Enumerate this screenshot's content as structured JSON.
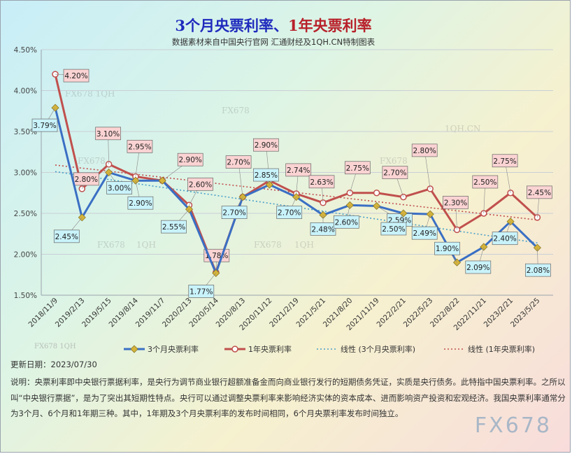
{
  "title_part1": "3个月央票利率、",
  "title_part2": "1年央票利率",
  "subtitle": "数据素材来自中国央行官网 汇通财经及1QH.CN特制图表",
  "update_text": "更新日期：2023/07/30",
  "note": "说明：央票利率即中央银行票据利率，是央行为调节商业银行超额准备金而向商业银行发行的短期债务凭证，实质是央行债务。此特指中国央票利率。之所以叫“中央银行票据”，是为了突出其短期性特点。央行可以通过调整央票利率来影响经济实体的资本成本、进而影响资产投资和宏观经济。我国央票利率通常分为3个月、6个月和1年期三种。其中，1年期及3个月央票利率的发布时间相同，6个月央票利率发布时间独立。",
  "watermarks": [
    "FX678 1QH",
    "FX678",
    "FX678",
    "1QH.CN",
    "FX678",
    "FX678",
    "1QH",
    "FX678",
    "1QH",
    "FX678 1QH"
  ],
  "watermark_big": "FX678",
  "colors": {
    "series_3m": "#3a6fc4",
    "series_1y": "#c0504d",
    "marker_3m": "#d6b43a",
    "label_3m_bg": "#c9f3fb",
    "label_1y_bg": "#fbd3d3"
  },
  "chart_data": {
    "type": "line",
    "categories": [
      "2018/11/9",
      "2019/2/13",
      "2019/5/15",
      "2019/8/14",
      "2019/11/7",
      "2020/2/13",
      "2020/5/14",
      "2020/8/13",
      "2020/11/12",
      "2021/2/19",
      "2021/5/21",
      "2021/8/20",
      "2021/11/19",
      "2022/2/21",
      "2022/5/23",
      "2022/8/22",
      "2022/11/21",
      "2023/2/21",
      "2023/5/25"
    ],
    "series": [
      {
        "name": "3个月央票利率",
        "values": [
          3.79,
          2.45,
          3.0,
          2.9,
          2.9,
          2.55,
          1.77,
          2.7,
          2.85,
          2.7,
          2.48,
          2.6,
          2.59,
          2.5,
          2.49,
          1.9,
          2.09,
          2.4,
          2.08
        ],
        "labels": [
          "3.79%",
          "2.45%",
          "3.00%",
          "2.90%",
          "",
          "2.55%",
          "1.77%",
          "2.70%",
          "2.85%",
          "2.70%",
          "2.48%",
          "2.60%",
          "2.59%",
          "2.50%",
          "2.49%",
          "1.90%",
          "2.09%",
          "2.40%",
          "2.08%"
        ]
      },
      {
        "name": "1年央票利率",
        "values": [
          4.2,
          2.8,
          3.1,
          2.95,
          2.9,
          2.6,
          1.78,
          2.7,
          2.9,
          2.74,
          2.63,
          2.75,
          2.75,
          2.7,
          2.8,
          2.3,
          2.5,
          2.75,
          2.45
        ],
        "labels": [
          "4.20%",
          "2.80%",
          "3.10%",
          "2.95%",
          "2.90%",
          "2.60%",
          "1.78%",
          "2.70%",
          "2.90%",
          "2.74%",
          "2.63%",
          "2.75%",
          "",
          "2.70%",
          "2.80%",
          "2.30%",
          "2.50%",
          "2.75%",
          "2.45%"
        ]
      }
    ],
    "trendlines": [
      {
        "name": "线性 (3个月央票利率)",
        "start": 3.01,
        "end": 2.14
      },
      {
        "name": "线性 (1年央票利率)",
        "start": 3.09,
        "end": 2.42
      }
    ],
    "y_ticks": [
      "1.50%",
      "2.00%",
      "2.50%",
      "3.00%",
      "3.50%",
      "4.00%",
      "4.50%"
    ],
    "ylim": [
      1.5,
      4.5
    ],
    "grid": true,
    "legend_position": "bottom"
  }
}
